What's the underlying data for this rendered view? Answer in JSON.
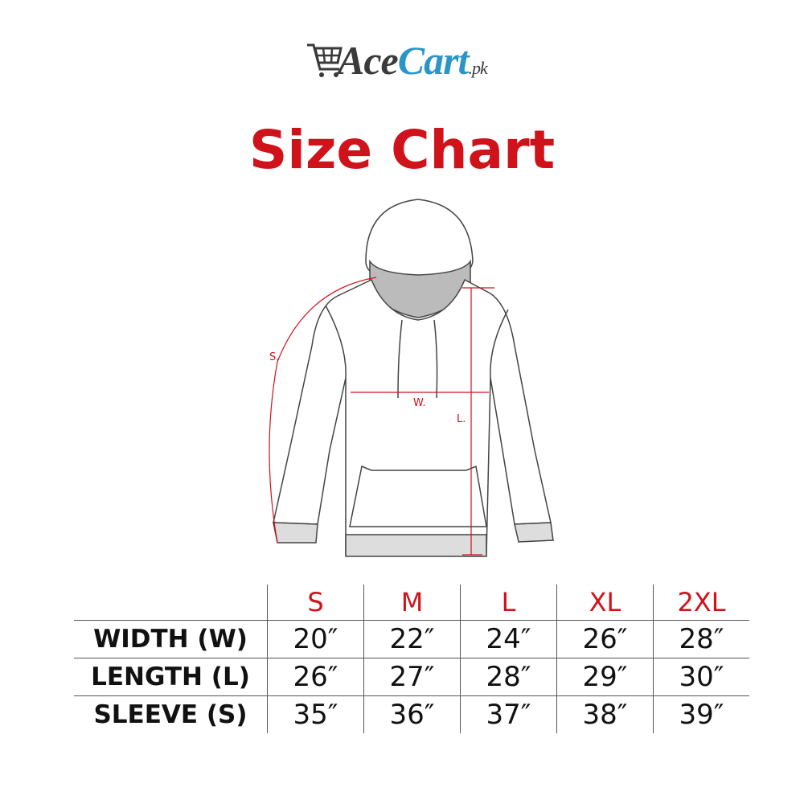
{
  "logo": {
    "part1": "Ace",
    "part2": "Cart",
    "part3": ".pk",
    "colors": {
      "dark": "#3a3a3a",
      "blue": "#2a96c8"
    }
  },
  "title": "Size Chart",
  "diagram": {
    "labels": {
      "sleeve": "S.",
      "width": "W.",
      "length": "L."
    }
  },
  "table": {
    "sizes": [
      "S",
      "M",
      "L",
      "XL",
      "2XL"
    ],
    "rows": [
      {
        "label": "WIDTH (W)",
        "values": [
          "20″",
          "22″",
          "24″",
          "26″",
          "28″"
        ]
      },
      {
        "label": "LENGTH (L)",
        "values": [
          "26″",
          "27″",
          "28″",
          "29″",
          "30″"
        ]
      },
      {
        "label": "SLEEVE (S)",
        "values": [
          "35″",
          "36″",
          "37″",
          "38″",
          "39″"
        ]
      }
    ]
  },
  "colors": {
    "accent": "#d0121b"
  }
}
